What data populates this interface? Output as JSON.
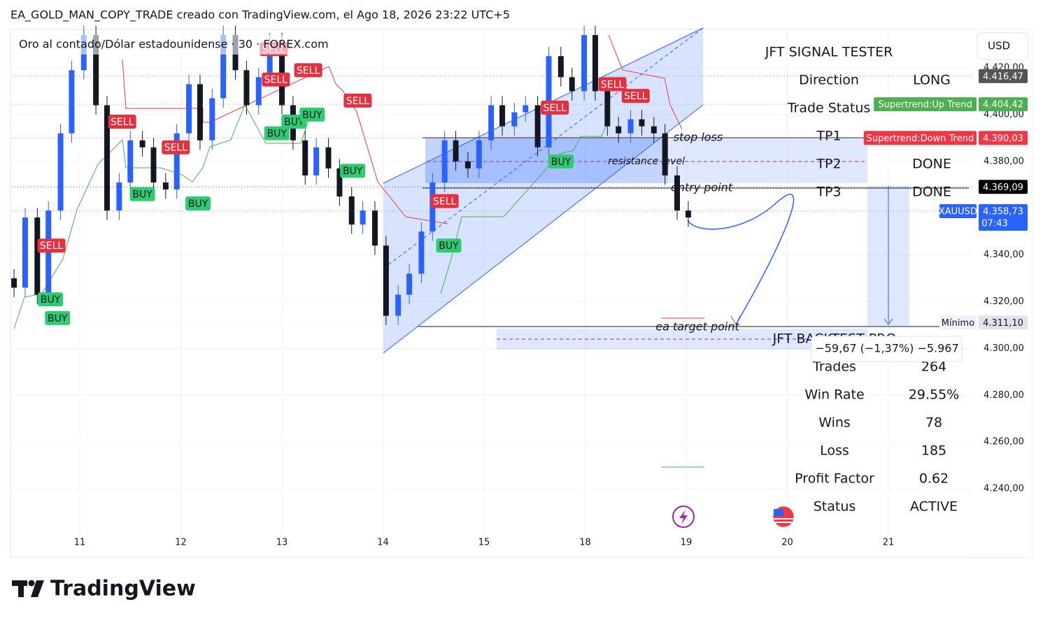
{
  "header": {
    "title": "EA_GOLD_MAN_COPY_TRADE creado con TradingView.com, el Ago 18, 2026 23:22 UTC+5",
    "symbol": "Oro al contado/Dólar estadounidense · 30 · FOREX.com"
  },
  "currency_button": "USD",
  "chart_data": {
    "type": "candlestick",
    "x": [
      -0.65,
      -0.54,
      -0.42,
      -0.31,
      -0.19,
      -0.08,
      0.04,
      0.16,
      0.27,
      0.39,
      0.5,
      0.62,
      0.73,
      0.85,
      0.96,
      1.08,
      1.19,
      1.31,
      1.42,
      1.54,
      1.65,
      1.77,
      1.88,
      2.0,
      2.11,
      2.23,
      2.34,
      2.46,
      2.57,
      2.69,
      2.8,
      2.92,
      3.03,
      3.15,
      3.26,
      3.38,
      3.49,
      3.61,
      3.72,
      3.84,
      3.95,
      4.07,
      4.18,
      4.3,
      4.41,
      4.53,
      4.64,
      4.76,
      4.87,
      4.99,
      5.1,
      5.22,
      5.33,
      5.45,
      5.56,
      5.68,
      5.79,
      5.91,
      6.02
    ],
    "open": [
      4330,
      4326,
      4356,
      4323,
      4359,
      4392,
      4419,
      4434,
      4404,
      4359,
      4371,
      4389,
      4386,
      4371,
      4368,
      4392,
      4413,
      4389,
      4407,
      4434,
      4419,
      4404,
      4416,
      4431,
      4404,
      4389,
      4374,
      4386,
      4377,
      4365,
      4353,
      4359,
      4344,
      4314,
      4323,
      4332,
      4350,
      4371,
      4389,
      4380,
      4377,
      4389,
      4404,
      4395,
      4401,
      4404,
      4386,
      4425,
      4416,
      4410,
      4434,
      4410,
      4395,
      4392,
      4398,
      4395,
      4392,
      4374,
      4359
    ],
    "high": [
      4334,
      4360,
      4360,
      4363,
      4396,
      4423,
      4438,
      4438,
      4408,
      4375,
      4393,
      4393,
      4390,
      4375,
      4396,
      4417,
      4417,
      4411,
      4438,
      4438,
      4423,
      4420,
      4435,
      4435,
      4408,
      4393,
      4390,
      4390,
      4381,
      4369,
      4363,
      4363,
      4348,
      4327,
      4336,
      4354,
      4375,
      4393,
      4393,
      4384,
      4393,
      4408,
      4408,
      4405,
      4408,
      4408,
      4429,
      4429,
      4420,
      4438,
      4438,
      4414,
      4399,
      4402,
      4402,
      4399,
      4396,
      4378,
      4363
    ],
    "low": [
      4322,
      4322,
      4319,
      4319,
      4355,
      4388,
      4415,
      4400,
      4355,
      4355,
      4367,
      4382,
      4367,
      4364,
      4364,
      4388,
      4385,
      4385,
      4403,
      4415,
      4400,
      4400,
      4412,
      4400,
      4385,
      4370,
      4370,
      4373,
      4361,
      4349,
      4349,
      4340,
      4310,
      4310,
      4319,
      4328,
      4346,
      4367,
      4376,
      4373,
      4373,
      4385,
      4391,
      4391,
      4397,
      4382,
      4382,
      4412,
      4406,
      4406,
      4406,
      4391,
      4388,
      4388,
      4391,
      4388,
      4370,
      4355,
      4352
    ],
    "close": [
      4326,
      4356,
      4323,
      4359,
      4392,
      4419,
      4434,
      4404,
      4359,
      4371,
      4389,
      4386,
      4371,
      4368,
      4392,
      4413,
      4389,
      4407,
      4434,
      4419,
      4404,
      4416,
      4431,
      4404,
      4389,
      4374,
      4386,
      4377,
      4365,
      4353,
      4359,
      4344,
      4314,
      4323,
      4332,
      4350,
      4371,
      4389,
      4380,
      4377,
      4389,
      4404,
      4395,
      4401,
      4404,
      4386,
      4425,
      4416,
      4410,
      4434,
      4410,
      4395,
      4392,
      4398,
      4395,
      4392,
      4374,
      4359,
      4356
    ],
    "up_color": "#2962ff",
    "down_color": "#131722",
    "xlim": [
      -0.67,
      8.8
    ],
    "xticks": [
      {
        "value": 0,
        "label": "11"
      },
      {
        "value": 1,
        "label": "12"
      },
      {
        "value": 2,
        "label": "13"
      },
      {
        "value": 3,
        "label": "14"
      },
      {
        "value": 4,
        "label": "15"
      },
      {
        "value": 5,
        "label": "18"
      },
      {
        "value": 6,
        "label": "19"
      },
      {
        "value": 7,
        "label": "20"
      },
      {
        "value": 8,
        "label": "21"
      }
    ],
    "ylim": [
      4220,
      4436
    ],
    "yticks": [
      {
        "value": 4240,
        "label": "4.240,00"
      },
      {
        "value": 4260,
        "label": "4.260,00"
      },
      {
        "value": 4280,
        "label": "4.280,00"
      },
      {
        "value": 4300,
        "label": "4.300,00"
      },
      {
        "value": 4320,
        "label": "4.320,00"
      },
      {
        "value": 4340,
        "label": "4.340,00"
      },
      {
        "value": 4380,
        "label": "4.380,00"
      },
      {
        "value": 4400,
        "label": "4.400,00"
      },
      {
        "value": 4420,
        "label": "4.420,00"
      }
    ],
    "grid": true,
    "price_tags": [
      {
        "value": 4416.47,
        "label": "4.416,47",
        "color": "#555555"
      },
      {
        "name": "Supertrend:Up Trend",
        "value": 4404.42,
        "label": "4.404,42",
        "color": "#4caf50"
      },
      {
        "name": "Supertrend:Down Trend",
        "value": 4390.03,
        "label": "4.390,03",
        "color": "#f23645"
      },
      {
        "value": 4369.09,
        "label": "4.369,09",
        "color": "#000000"
      },
      {
        "name": "XAUUSD",
        "value": 4358.73,
        "label": "4.358,73",
        "countdown": "07:43",
        "color": "#2962ff"
      },
      {
        "name": "Mínimo",
        "value": 4311.1,
        "label": "4.311,10",
        "color": "#e0e3eb"
      }
    ],
    "signals": [
      {
        "label": "SELL",
        "x": 0.42,
        "price": 4397
      },
      {
        "label": "SELL",
        "x": 0.95,
        "price": 4386
      },
      {
        "label": "SELL",
        "x": 1.92,
        "price": 4428
      },
      {
        "label": "SELL",
        "x": 1.94,
        "price": 4415
      },
      {
        "label": "SELL",
        "x": 2.26,
        "price": 4419
      },
      {
        "label": "SELL",
        "x": 2.75,
        "price": 4406
      },
      {
        "label": "SELL",
        "x": 3.61,
        "price": 4363
      },
      {
        "label": "SELL",
        "x": 4.7,
        "price": 4403
      },
      {
        "label": "SELL",
        "x": 5.27,
        "price": 4413
      },
      {
        "label": "SELL",
        "x": 5.5,
        "price": 4408
      },
      {
        "label": "SELL",
        "x": -0.28,
        "price": 4344
      },
      {
        "label": "BUY",
        "x": -0.29,
        "price": 4321
      },
      {
        "label": "BUY",
        "x": -0.22,
        "price": 4313
      },
      {
        "label": "BUY",
        "x": 0.62,
        "price": 4366
      },
      {
        "label": "BUY",
        "x": 1.17,
        "price": 4362
      },
      {
        "label": "BUY",
        "x": 1.95,
        "price": 4392
      },
      {
        "label": "BUY",
        "x": 2.12,
        "price": 4397
      },
      {
        "label": "BUY",
        "x": 2.3,
        "price": 4400
      },
      {
        "label": "BUY",
        "x": 2.7,
        "price": 4376
      },
      {
        "label": "BUY",
        "x": 3.65,
        "price": 4344
      },
      {
        "label": "BUY",
        "x": 4.76,
        "price": 4380
      }
    ],
    "annotations": {
      "stop_loss": "stop loss",
      "resistance": "resistance level",
      "entry": "entry point",
      "target": "ea target point"
    },
    "change_label": "−59,67 (−1,37%) −5.967"
  },
  "signal_panel": {
    "title": "JFT SIGNAL TESTER",
    "rows": [
      {
        "label": "Direction",
        "value": "LONG"
      },
      {
        "label": "Trade Status"
      },
      {
        "label": "TP1"
      },
      {
        "label": "TP2",
        "value": "DONE"
      },
      {
        "label": "TP3",
        "value": "DONE"
      }
    ]
  },
  "backtest_panel": {
    "title": "JFT BACKTEST PRO",
    "rows": [
      {
        "label": "Trades",
        "value": "264"
      },
      {
        "label": "Win Rate",
        "value": "29.55%"
      },
      {
        "label": "Wins",
        "value": "78"
      },
      {
        "label": "Loss",
        "value": "185"
      },
      {
        "label": "Profit Factor",
        "value": "0.62"
      },
      {
        "label": "Status",
        "value": "ACTIVE"
      }
    ]
  },
  "footer": {
    "logo": "TradingView"
  }
}
